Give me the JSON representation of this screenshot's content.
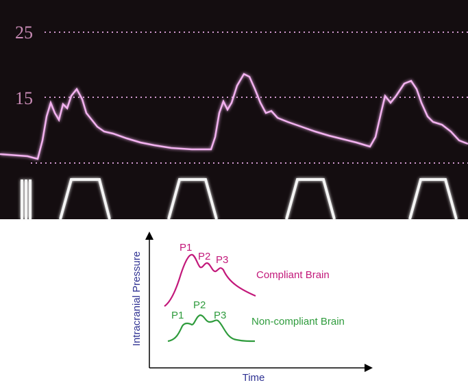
{
  "monitor": {
    "scale_labels": [
      "25",
      "15"
    ]
  },
  "diagram": {
    "y_axis_label": "Intracranial Pressure",
    "x_axis_label": "Time",
    "curves": [
      {
        "name": "Compliant Brain",
        "peaks": [
          "P1",
          "P2",
          "P3"
        ]
      },
      {
        "name": "Non-compliant Brain",
        "peaks": [
          "P1",
          "P2",
          "P3"
        ]
      }
    ]
  }
}
